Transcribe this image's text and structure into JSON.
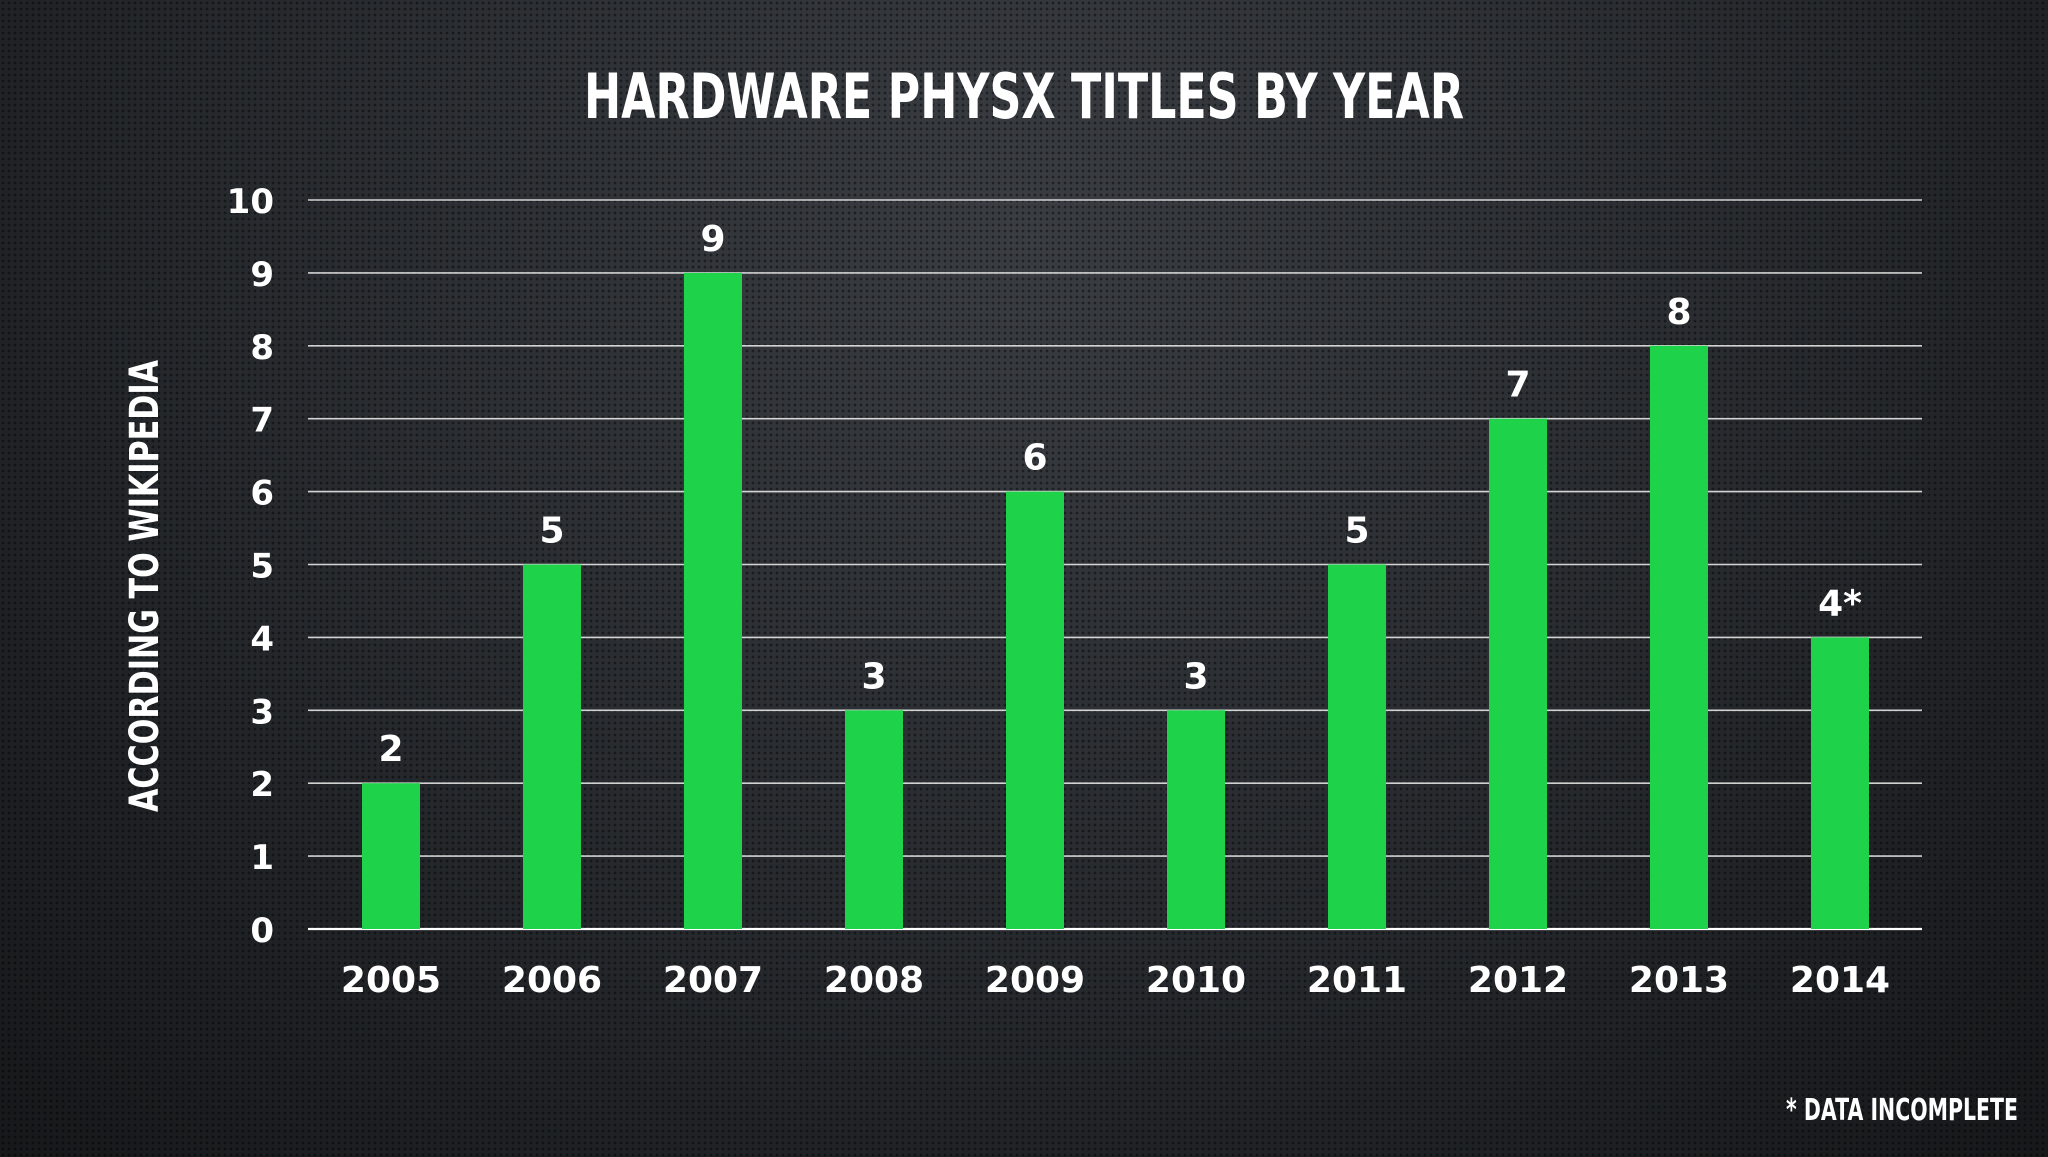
{
  "chart_data": {
    "type": "bar",
    "title": "HARDWARE PHYSX TITLES BY YEAR",
    "ylabel": "ACCORDING TO WIKIPEDIA",
    "xlabel": "",
    "categories": [
      "2005",
      "2006",
      "2007",
      "2008",
      "2009",
      "2010",
      "2011",
      "2012",
      "2013",
      "2014"
    ],
    "values": [
      2,
      5,
      9,
      3,
      6,
      3,
      5,
      7,
      8,
      4
    ],
    "value_labels": [
      "2",
      "5",
      "9",
      "3",
      "6",
      "3",
      "5",
      "7",
      "8",
      "4*"
    ],
    "ylim": [
      0,
      10
    ],
    "yticks": [
      "0",
      "1",
      "2",
      "3",
      "4",
      "5",
      "6",
      "7",
      "8",
      "9",
      "10"
    ],
    "grid": true,
    "bar_color": "#1ed34a",
    "footnote": "* DATA INCOMPLETE"
  }
}
